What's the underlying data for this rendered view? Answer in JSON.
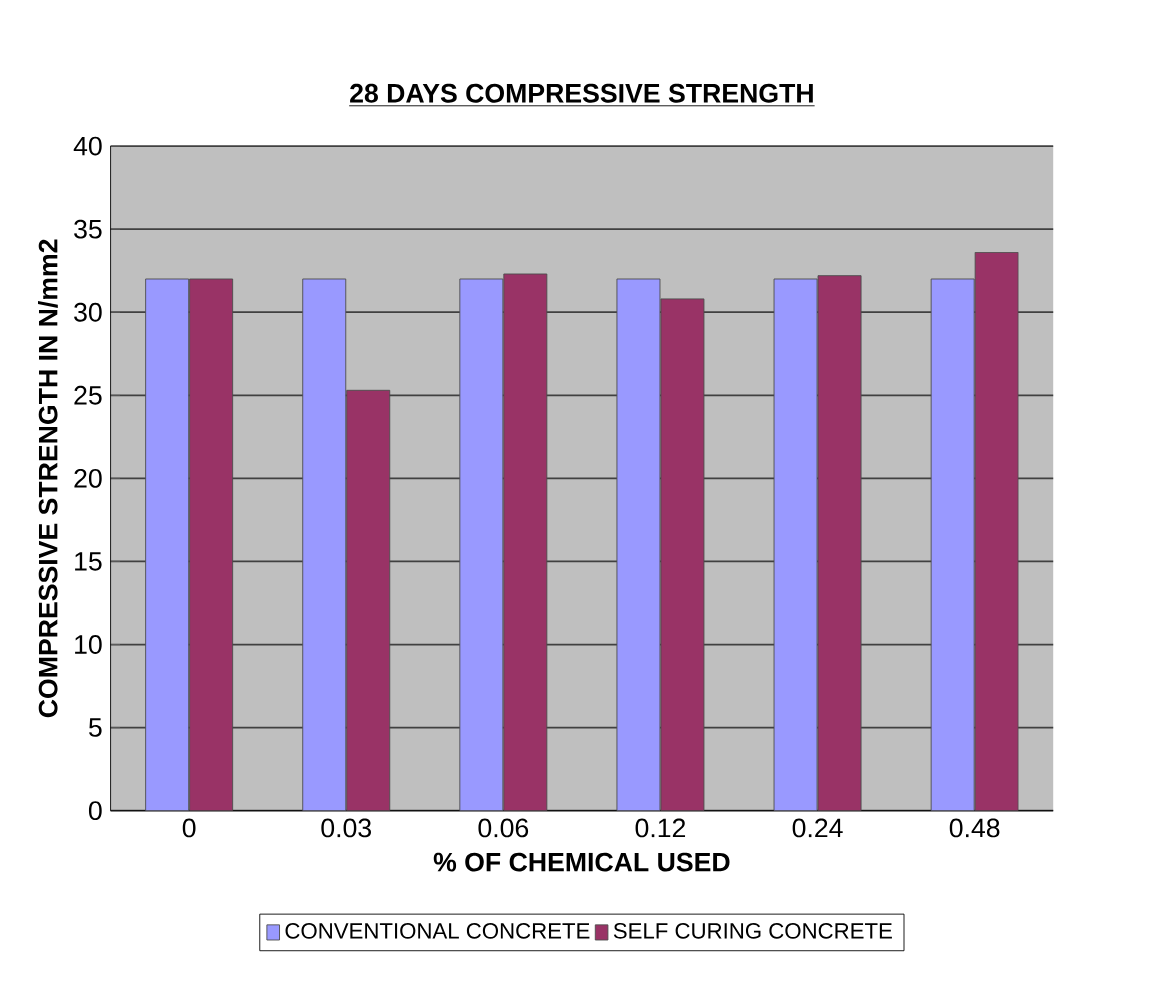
{
  "chart_data": {
    "type": "bar",
    "title": "28 DAYS COMPRESSIVE STRENGTH",
    "xlabel": "% OF CHEMICAL USED",
    "ylabel": "COMPRESSIVE STRENGTH IN N/mm2",
    "categories": [
      "0",
      "0.03",
      "0.06",
      "0.12",
      "0.24",
      "0.48"
    ],
    "series": [
      {
        "name": "CONVENTIONAL CONCRETE",
        "color": "#9999ff",
        "values": [
          32,
          32,
          32,
          32,
          32,
          32
        ]
      },
      {
        "name": "SELF CURING CONCRETE",
        "color": "#993366",
        "values": [
          32,
          25.3,
          32.3,
          30.8,
          32.2,
          33.6
        ]
      }
    ],
    "ylim": [
      0,
      40
    ],
    "yticks": [
      0,
      5,
      10,
      15,
      20,
      25,
      30,
      35,
      40
    ],
    "grid": "y",
    "legend": "bottom"
  }
}
